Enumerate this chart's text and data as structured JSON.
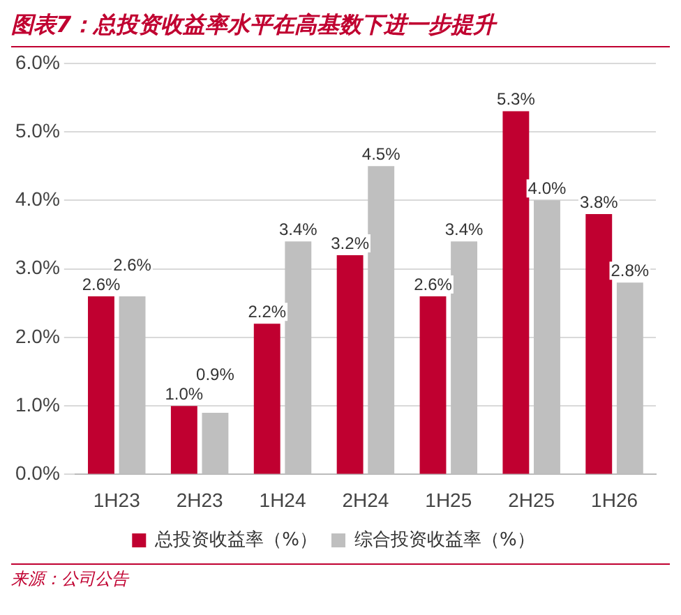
{
  "chart_data": {
    "type": "bar",
    "title": "图表7：总投资收益率水平在高基数下进一步提升",
    "categories": [
      "1H23",
      "2H23",
      "1H24",
      "2H24",
      "1H25",
      "2H25",
      "1H26"
    ],
    "series": [
      {
        "name": "总投资收益率（%）",
        "color": "#c00030",
        "values": [
          2.6,
          1.0,
          2.2,
          3.2,
          2.6,
          5.3,
          3.8
        ],
        "value_labels": [
          "2.6%",
          "1.0%",
          "2.2%",
          "3.2%",
          "2.6%",
          "5.3%",
          "3.8%"
        ]
      },
      {
        "name": "综合投资收益率（%）",
        "color": "#bfbfbf",
        "values": [
          2.6,
          0.9,
          3.4,
          4.5,
          3.4,
          4.0,
          2.8
        ],
        "value_labels": [
          "2.6%",
          "0.9%",
          "3.4%",
          "4.5%",
          "3.4%",
          "4.0%",
          "2.8%"
        ]
      }
    ],
    "ylim": [
      0,
      6
    ],
    "yticks": [
      {
        "value": 0,
        "label": "0.0%"
      },
      {
        "value": 1,
        "label": "1.0%"
      },
      {
        "value": 2,
        "label": "2.0%"
      },
      {
        "value": 3,
        "label": "3.0%"
      },
      {
        "value": 4,
        "label": "4.0%"
      },
      {
        "value": 5,
        "label": "5.0%"
      },
      {
        "value": 6,
        "label": "6.0%"
      }
    ],
    "grid": "y",
    "legend": "bottom",
    "annotations": [
      "来源：公司公告"
    ]
  }
}
